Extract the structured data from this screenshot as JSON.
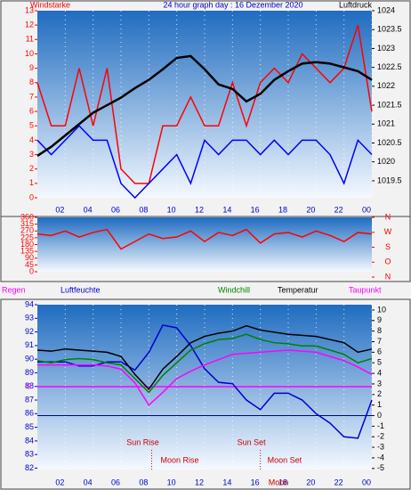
{
  "chart_data": [
    {
      "type": "line",
      "title": "24 hour graph day : 16 Dezember 2020",
      "left_label": "Windstarke",
      "right_label": "Luftdruck",
      "x": [
        0,
        1,
        2,
        3,
        4,
        5,
        6,
        7,
        8,
        9,
        10,
        11,
        12,
        13,
        14,
        15,
        16,
        17,
        18,
        19,
        20,
        21,
        22,
        23,
        24
      ],
      "xlim": [
        0,
        24
      ],
      "xticks": [
        {
          "value": 2,
          "label": "02"
        },
        {
          "value": 4,
          "label": "04"
        },
        {
          "value": 6,
          "label": "06"
        },
        {
          "value": 8,
          "label": "08"
        },
        10,
        12,
        14,
        16,
        18,
        20,
        22,
        {
          "value": 24,
          "label": "00"
        }
      ],
      "ylim": [
        0,
        13
      ],
      "yticks": [
        0,
        1,
        2,
        3,
        4,
        5,
        6,
        7,
        8,
        9,
        10,
        11,
        12,
        13
      ],
      "y2lim": [
        1019.05,
        1024
      ],
      "y2ticks": [
        1019.5,
        1020,
        1020.5,
        1021,
        1021.5,
        1022,
        1022.5,
        1023,
        1023.5,
        1024
      ],
      "series": [
        {
          "color": "#ff0000",
          "values": [
            8,
            5,
            5,
            9,
            5,
            9,
            2,
            1,
            1,
            5,
            5,
            7,
            5,
            5,
            8,
            5,
            8,
            9,
            8,
            10,
            9,
            8,
            9,
            12,
            6
          ]
        },
        {
          "color": "#0000ff",
          "values": [
            4,
            3,
            4,
            5,
            4,
            4,
            1,
            0,
            1,
            2,
            3,
            1,
            4,
            3,
            4,
            4,
            3,
            4,
            3,
            4,
            4,
            3,
            1,
            4,
            3
          ]
        },
        {
          "color": "#000000",
          "axis": "y2",
          "values": [
            1020.16,
            1020.4,
            1020.7,
            1021,
            1021.3,
            1021.5,
            1021.7,
            1021.95,
            1022.17,
            1022.45,
            1022.75,
            1022.8,
            1022.45,
            1022.05,
            1021.93,
            1021.6,
            1021.8,
            1022.17,
            1022.4,
            1022.6,
            1022.64,
            1022.6,
            1022.5,
            1022.4,
            1022.17
          ]
        }
      ]
    },
    {
      "type": "line",
      "x": [
        0,
        1,
        2,
        3,
        4,
        5,
        6,
        7,
        8,
        9,
        10,
        11,
        12,
        13,
        14,
        15,
        16,
        17,
        18,
        19,
        20,
        21,
        22,
        23,
        24
      ],
      "xlim": [
        0,
        24
      ],
      "ylim": [
        0,
        360
      ],
      "yticks": [
        0,
        45,
        90,
        135,
        180,
        225,
        270,
        315,
        360
      ],
      "y2lim": [
        0,
        360
      ],
      "y2ticks": [
        {
          "value": 0,
          "label": "N"
        },
        {
          "value": 90,
          "label": "O"
        },
        {
          "value": 180,
          "label": "S"
        },
        {
          "value": 270,
          "label": "W"
        },
        {
          "value": 360,
          "label": "N"
        }
      ],
      "series": [
        {
          "color": "#ff0000",
          "values": [
            250,
            240,
            270,
            230,
            260,
            280,
            150,
            200,
            250,
            220,
            230,
            270,
            200,
            260,
            240,
            280,
            190,
            250,
            260,
            230,
            270,
            240,
            200,
            260,
            250
          ]
        }
      ]
    },
    {
      "type": "line",
      "x": [
        0,
        1,
        2,
        3,
        4,
        5,
        6,
        7,
        8,
        9,
        10,
        11,
        12,
        13,
        14,
        15,
        16,
        17,
        18,
        19,
        20,
        21,
        22,
        23,
        24
      ],
      "xlim": [
        0,
        24
      ],
      "xticks": [
        {
          "value": 2,
          "label": "02"
        },
        {
          "value": 4,
          "label": "04"
        },
        {
          "value": 6,
          "label": "06"
        },
        {
          "value": 8,
          "label": "08"
        },
        10,
        12,
        14,
        16,
        18,
        20,
        22,
        {
          "value": 24,
          "label": "00"
        }
      ],
      "ylim": [
        81.9,
        94
      ],
      "yticks": [
        82,
        83,
        84,
        85,
        86,
        87,
        88,
        89,
        90,
        91,
        92,
        93,
        94
      ],
      "y2lim": [
        -5.1,
        10.5
      ],
      "y2ticks": [
        -5,
        -4,
        -3,
        -2,
        -1,
        0,
        1,
        2,
        3,
        4,
        5,
        6,
        7,
        8,
        9,
        10
      ],
      "rain": {
        "name": "Regen",
        "tick": 0
      },
      "series": [
        {
          "name": "Luftfeuchte",
          "color": "#0000cc",
          "values": [
            89.8,
            89.8,
            89.8,
            89.5,
            89.5,
            89.8,
            89.8,
            89.2,
            90.5,
            92.5,
            92.3,
            91,
            89.3,
            88.3,
            88.2,
            87,
            86.3,
            87.5,
            87.5,
            87,
            86,
            85.3,
            84.3,
            84.2,
            87
          ]
        },
        {
          "name": "Windchill",
          "color": "#008000",
          "axis": "y2",
          "values": [
            5.2,
            5.0,
            5.3,
            5.4,
            5.3,
            5.0,
            4.8,
            3.5,
            2.2,
            3.8,
            5.0,
            6.2,
            6.8,
            7.2,
            7.3,
            7.7,
            7.2,
            6.9,
            6.8,
            6.6,
            6.6,
            6.2,
            5.8,
            5.0,
            5.4
          ]
        },
        {
          "name": "Temperatur",
          "color": "#000000",
          "axis": "y2",
          "values": [
            6.2,
            6.1,
            6.3,
            6.2,
            6.1,
            6.0,
            5.6,
            3.9,
            2.5,
            4.4,
            5.6,
            6.9,
            7.5,
            7.8,
            8.0,
            8.5,
            8.1,
            7.9,
            7.7,
            7.6,
            7.5,
            7.2,
            6.9,
            6.0,
            6.3
          ]
        },
        {
          "name": "Taupunkt",
          "color": "#ff00ff",
          "axis": "y2",
          "values": [
            4.8,
            4.8,
            4.8,
            4.8,
            4.8,
            4.7,
            4.4,
            3.1,
            1.0,
            2.2,
            3.5,
            4.2,
            4.8,
            5.3,
            5.8,
            5.9,
            6.0,
            6.1,
            6.2,
            6.1,
            6.0,
            5.6,
            5.2,
            4.6,
            3.9
          ]
        }
      ],
      "annotations": [
        {
          "text": "Sun Rise",
          "x": 8.2
        },
        {
          "text": "Moon Rise",
          "x": 8.2
        },
        {
          "text": "Sun Set",
          "x": 16
        },
        {
          "text": "Moon Set",
          "x": 16
        },
        {
          "text": "Moon",
          "x": 17.3
        }
      ]
    }
  ]
}
